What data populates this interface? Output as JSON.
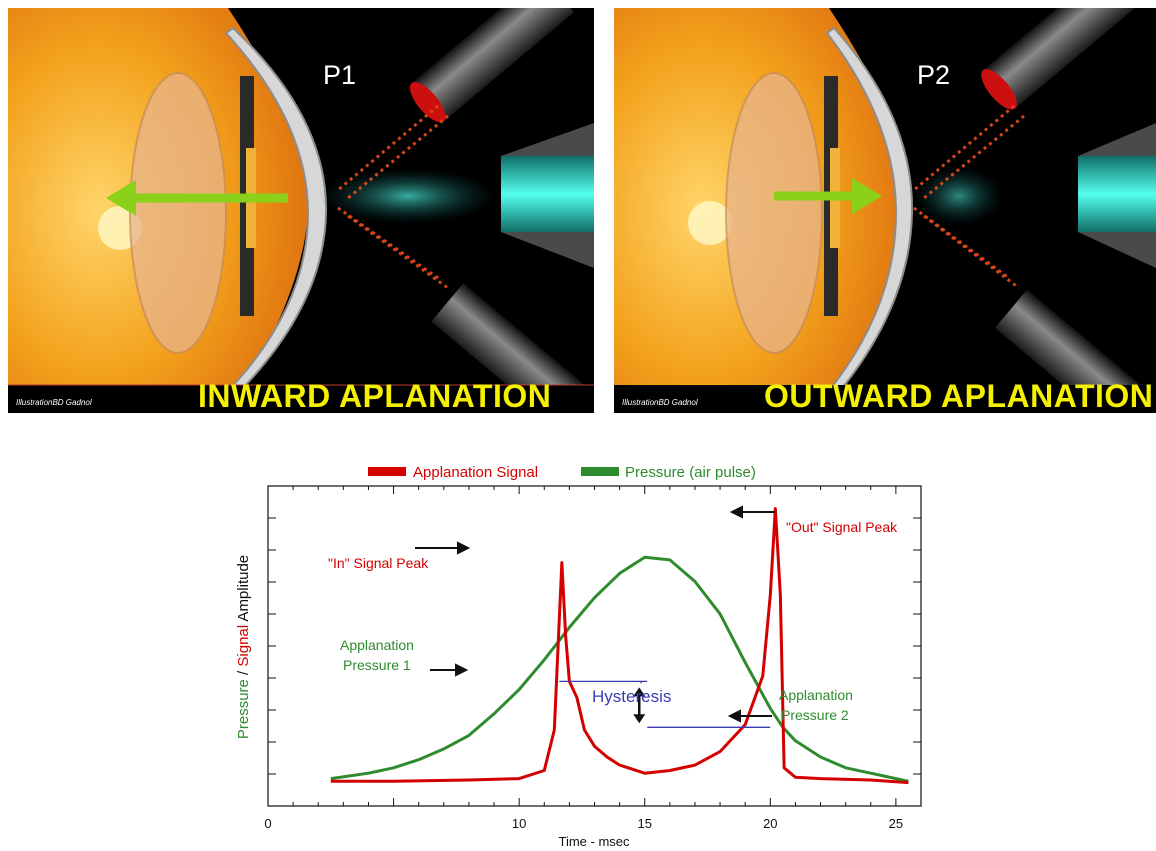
{
  "panels": [
    {
      "label": "P1",
      "caption": "INWARD APLANATION",
      "credit": "IllustrationBD Gadnol",
      "arrow_direction": "inward"
    },
    {
      "label": "P2",
      "caption": "OUTWARD APLANATION",
      "credit": "IllustrationBD Gadnol",
      "arrow_direction": "outward"
    }
  ],
  "colors": {
    "applanation_signal": "#d40000",
    "pressure": "#2e8b2e",
    "hysteresis": "#3b3bb5",
    "caption": "#f4f000",
    "eye_orange": "#f29d1a",
    "cyan_beam": "#35e0d0",
    "arrow_green": "#8bd11a"
  },
  "chart_data": {
    "type": "line",
    "legend": [
      {
        "name": "Applanation Signal",
        "color": "#d40000"
      },
      {
        "name": "Pressure (air pulse)",
        "color": "#2e8b2e"
      }
    ],
    "xlabel": "Time - msec",
    "ylabel_parts": [
      {
        "text": "Pressure",
        "color": "#2e8b2e"
      },
      {
        "text": " / ",
        "color": "#111111"
      },
      {
        "text": "Signal",
        "color": "#d40000"
      },
      {
        "text": " Amplitude",
        "color": "#111111"
      }
    ],
    "xlim": [
      0,
      26
    ],
    "xticks": [
      0,
      10,
      15,
      20,
      25
    ],
    "ylim": [
      0,
      100
    ],
    "grid": false,
    "legend_position": "top",
    "series": [
      {
        "name": "Pressure (air pulse)",
        "color": "#2e8b2e",
        "x": [
          2.5,
          4,
          5,
          6,
          7,
          8,
          9,
          10,
          11,
          12,
          13,
          14,
          15,
          16,
          17,
          18,
          19,
          20,
          20.5,
          21,
          22,
          23,
          24,
          25,
          25.5
        ],
        "y": [
          2,
          4,
          6,
          9,
          13,
          18,
          26,
          35,
          46,
          58,
          69,
          78,
          84,
          83,
          75,
          63,
          45,
          28,
          21,
          16,
          10,
          6,
          4,
          2,
          1
        ]
      },
      {
        "name": "Applanation Signal",
        "color": "#d40000",
        "x": [
          2.5,
          5,
          8,
          10,
          11,
          11.4,
          11.7,
          11.85,
          12.0,
          12.3,
          12.6,
          13,
          13.5,
          14,
          15,
          16,
          17,
          18,
          19,
          19.7,
          20.0,
          20.2,
          20.4,
          20.55,
          21,
          22,
          24,
          25.5
        ],
        "y": [
          1,
          1,
          1.5,
          2,
          5,
          20,
          82,
          55,
          38,
          32,
          20,
          14,
          10,
          7,
          4,
          5,
          7,
          12,
          22,
          40,
          70,
          102,
          70,
          6,
          2.5,
          2,
          1.5,
          0.5
        ]
      }
    ],
    "annotations": [
      {
        "text": "\"In\" Signal Peak",
        "color": "#d40000"
      },
      {
        "text": "\"Out\" Signal Peak",
        "color": "#d40000"
      },
      {
        "text": "Applanation",
        "color": "#2e8b2e"
      },
      {
        "text": "Pressure 1",
        "color": "#2e8b2e"
      },
      {
        "text": "Applanation",
        "color": "#2e8b2e"
      },
      {
        "text": "Pressure 2",
        "color": "#2e8b2e"
      },
      {
        "text": "Hysteresis",
        "color": "#3b3bb5"
      }
    ],
    "hysteresis": {
      "p1": 38,
      "p2": 21,
      "x1": 11.6,
      "x2": 20.0
    }
  }
}
